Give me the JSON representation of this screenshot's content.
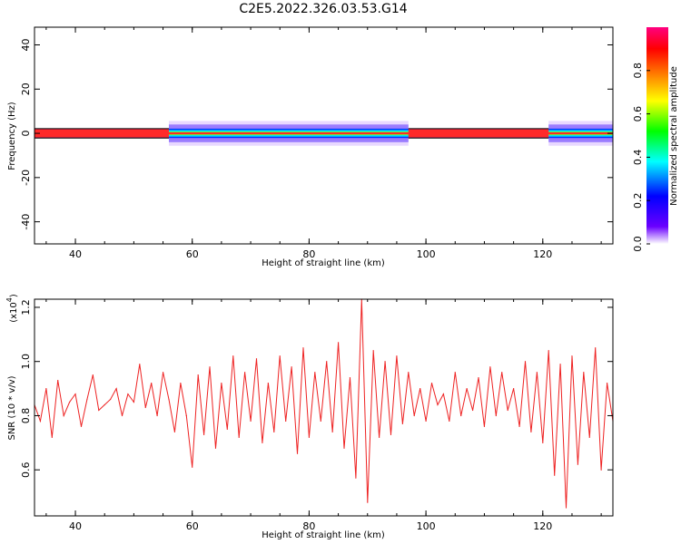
{
  "title": "C2E5.2022.326.03.53.G14",
  "chart_data": [
    {
      "type": "heatmap",
      "xlabel": "Height of straight line (km)",
      "ylabel": "Frequency (Hz)",
      "xlim": [
        33,
        132
      ],
      "ylim": [
        -50,
        48
      ],
      "x_ticks": [
        "40",
        "60",
        "80",
        "100",
        "120"
      ],
      "y_ticks": [
        "40",
        "20",
        "0",
        "-20",
        "-40"
      ],
      "band": {
        "center_frequency": 0,
        "quiet_segments": [
          [
            33,
            56
          ],
          [
            97,
            121
          ]
        ],
        "noisy_segments": [
          [
            56,
            97
          ],
          [
            121,
            132
          ]
        ],
        "core_halfwidth_hz": 1.5,
        "spread_halfwidth_hz": 4
      },
      "colorbar": {
        "label": "Normalized spectral amplitude",
        "range": [
          0,
          1
        ],
        "ticks": [
          "0.0",
          "0.2",
          "0.4",
          "0.6",
          "0.8"
        ],
        "colors": [
          "#ffffff",
          "#6a00ff",
          "#0000ff",
          "#00ffff",
          "#00ff00",
          "#ffff00",
          "#ff8000",
          "#ff0000",
          "#ff0080"
        ]
      }
    },
    {
      "type": "line",
      "xlabel": "Height of straight line (km)",
      "ylabel": "SNR (10 * v/v)",
      "multiplier_label": "(x10",
      "multiplier_exp": "4",
      "xlim": [
        33,
        132
      ],
      "ylim": [
        0.43,
        1.23
      ],
      "x_ticks": [
        "40",
        "60",
        "80",
        "100",
        "120"
      ],
      "y_ticks": [
        "1.2",
        "1.0",
        "0.8",
        "0.6"
      ],
      "color": "#ee2222",
      "x": [
        33,
        34,
        35,
        36,
        37,
        38,
        39,
        40,
        41,
        42,
        43,
        44,
        45,
        46,
        47,
        48,
        49,
        50,
        51,
        52,
        53,
        54,
        55,
        56,
        57,
        58,
        59,
        60,
        61,
        62,
        63,
        64,
        65,
        66,
        67,
        68,
        69,
        70,
        71,
        72,
        73,
        74,
        75,
        76,
        77,
        78,
        79,
        80,
        81,
        82,
        83,
        84,
        85,
        86,
        87,
        88,
        89,
        90,
        91,
        92,
        93,
        94,
        95,
        96,
        97,
        98,
        99,
        100,
        101,
        102,
        103,
        104,
        105,
        106,
        107,
        108,
        109,
        110,
        111,
        112,
        113,
        114,
        115,
        116,
        117,
        118,
        119,
        120,
        121,
        122,
        123,
        124,
        125,
        126,
        127,
        128,
        129,
        130,
        131,
        132
      ],
      "y": [
        0.84,
        0.78,
        0.9,
        0.72,
        0.93,
        0.8,
        0.85,
        0.88,
        0.76,
        0.86,
        0.95,
        0.82,
        0.84,
        0.86,
        0.9,
        0.8,
        0.88,
        0.85,
        0.99,
        0.83,
        0.92,
        0.8,
        0.96,
        0.86,
        0.74,
        0.92,
        0.8,
        0.61,
        0.95,
        0.73,
        0.98,
        0.68,
        0.92,
        0.75,
        1.02,
        0.72,
        0.96,
        0.78,
        1.01,
        0.7,
        0.92,
        0.74,
        1.02,
        0.78,
        0.98,
        0.66,
        1.05,
        0.72,
        0.96,
        0.78,
        1.0,
        0.74,
        1.07,
        0.68,
        0.94,
        0.57,
        1.23,
        0.48,
        1.04,
        0.72,
        1.0,
        0.73,
        1.02,
        0.77,
        0.96,
        0.8,
        0.9,
        0.78,
        0.92,
        0.84,
        0.88,
        0.78,
        0.96,
        0.8,
        0.9,
        0.82,
        0.94,
        0.76,
        0.98,
        0.8,
        0.96,
        0.82,
        0.9,
        0.76,
        1.0,
        0.74,
        0.96,
        0.7,
        1.04,
        0.58,
        0.99,
        0.46,
        1.02,
        0.62,
        0.96,
        0.72,
        1.05,
        0.6,
        0.92,
        0.78
      ]
    }
  ]
}
